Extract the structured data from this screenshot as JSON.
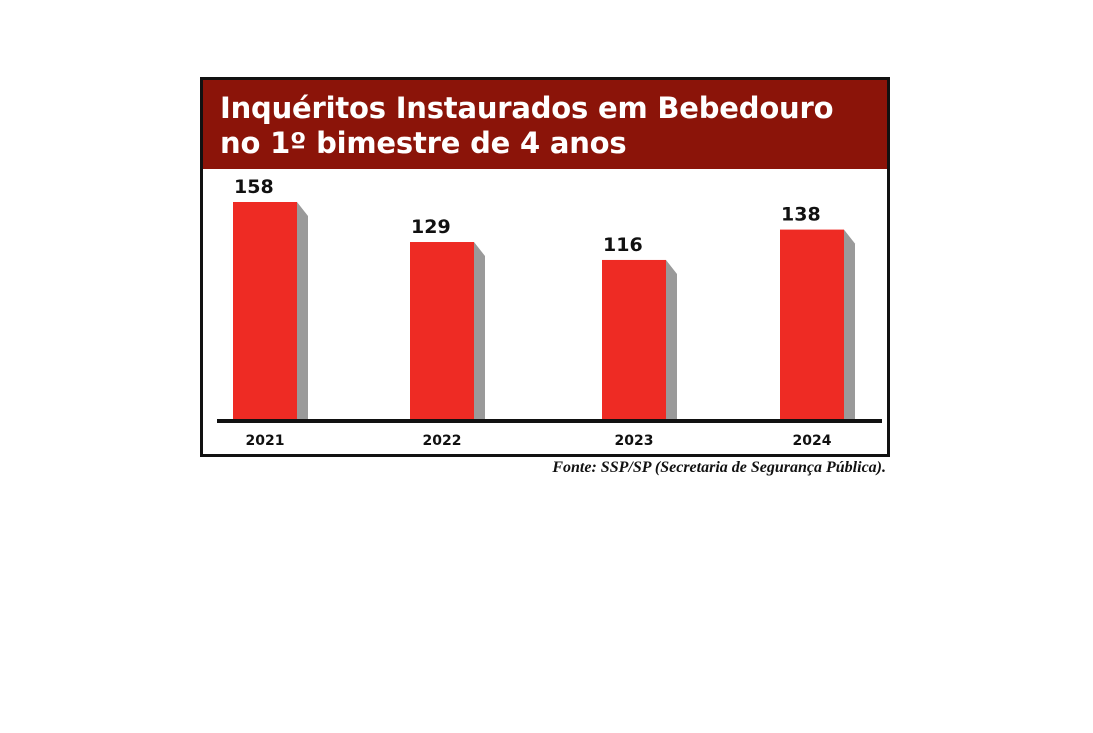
{
  "chart_data": {
    "type": "bar",
    "title": "Inquéritos Instaurados em Bebedouro no 1º bimestre de 4 anos",
    "categories": [
      "2021",
      "2022",
      "2023",
      "2024"
    ],
    "values": [
      158,
      129,
      116,
      138
    ],
    "value_labels": [
      "158",
      "129",
      "116",
      "138"
    ],
    "xlabel": "",
    "ylabel": "",
    "grid": false,
    "legend": "none",
    "bar_color": "#ee2b24",
    "bar_shadow_color": "#9a9a9a",
    "title_band_color": "#8b1409"
  },
  "source": "Fonte: SSP/SP (Secretaria de Segurança Pública)."
}
